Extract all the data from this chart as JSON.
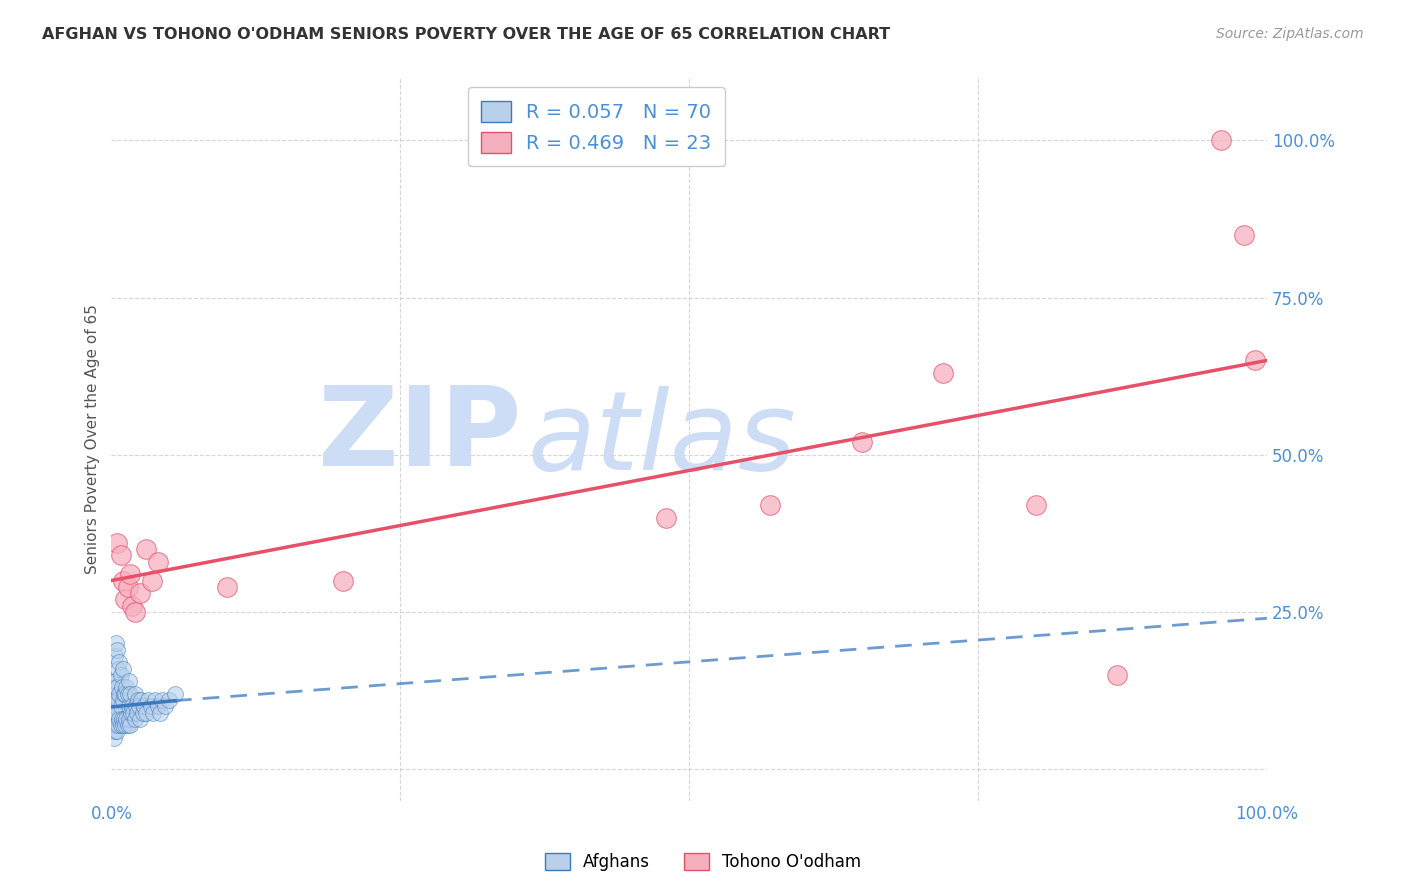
{
  "title": "AFGHAN VS TOHONO O'ODHAM SENIORS POVERTY OVER THE AGE OF 65 CORRELATION CHART",
  "source": "Source: ZipAtlas.com",
  "ylabel": "Seniors Poverty Over the Age of 65",
  "xlim": [
    0,
    1
  ],
  "ylim": [
    -0.05,
    1.1
  ],
  "r_afghan": 0.057,
  "n_afghan": 70,
  "r_tohono": 0.469,
  "n_tohono": 23,
  "afghan_color": "#b8d0ea",
  "tohono_color": "#f5b0c0",
  "afghan_line_color": "#3a7abf",
  "tohono_line_color": "#e8506a",
  "legend_label_afghan": "Afghans",
  "legend_label_tohono": "Tohono O'odham",
  "watermark_zip": "ZIP",
  "watermark_atlas": "atlas",
  "watermark_color": "#cdddf5",
  "background_color": "#ffffff",
  "grid_color": "#cccccc",
  "title_color": "#333333",
  "axis_label_color": "#555555",
  "tick_color_blue": "#4a90d9",
  "afghan_x": [
    0.0,
    0.001,
    0.001,
    0.002,
    0.002,
    0.002,
    0.002,
    0.003,
    0.003,
    0.003,
    0.003,
    0.004,
    0.004,
    0.004,
    0.004,
    0.005,
    0.005,
    0.005,
    0.005,
    0.006,
    0.006,
    0.006,
    0.007,
    0.007,
    0.007,
    0.008,
    0.008,
    0.008,
    0.009,
    0.009,
    0.01,
    0.01,
    0.01,
    0.011,
    0.011,
    0.012,
    0.012,
    0.013,
    0.013,
    0.014,
    0.014,
    0.015,
    0.015,
    0.015,
    0.016,
    0.016,
    0.017,
    0.018,
    0.019,
    0.02,
    0.02,
    0.021,
    0.022,
    0.023,
    0.024,
    0.025,
    0.026,
    0.027,
    0.028,
    0.03,
    0.032,
    0.034,
    0.036,
    0.038,
    0.04,
    0.042,
    0.044,
    0.046,
    0.05,
    0.055
  ],
  "afghan_y": [
    0.09,
    0.08,
    0.1,
    0.05,
    0.07,
    0.11,
    0.14,
    0.06,
    0.09,
    0.13,
    0.18,
    0.07,
    0.1,
    0.14,
    0.2,
    0.06,
    0.09,
    0.13,
    0.19,
    0.07,
    0.11,
    0.16,
    0.08,
    0.12,
    0.17,
    0.07,
    0.1,
    0.15,
    0.08,
    0.13,
    0.07,
    0.11,
    0.16,
    0.08,
    0.12,
    0.07,
    0.12,
    0.08,
    0.13,
    0.07,
    0.12,
    0.08,
    0.1,
    0.14,
    0.07,
    0.12,
    0.09,
    0.1,
    0.09,
    0.08,
    0.12,
    0.1,
    0.09,
    0.11,
    0.1,
    0.08,
    0.11,
    0.09,
    0.1,
    0.09,
    0.11,
    0.1,
    0.09,
    0.11,
    0.1,
    0.09,
    0.11,
    0.1,
    0.11,
    0.12
  ],
  "tohono_x": [
    0.005,
    0.008,
    0.01,
    0.012,
    0.014,
    0.016,
    0.018,
    0.02,
    0.025,
    0.03,
    0.035,
    0.04,
    0.1,
    0.2,
    0.48,
    0.57,
    0.65,
    0.72,
    0.8,
    0.87,
    0.96,
    0.98,
    0.99
  ],
  "tohono_y": [
    0.36,
    0.34,
    0.3,
    0.27,
    0.29,
    0.31,
    0.26,
    0.25,
    0.28,
    0.35,
    0.3,
    0.33,
    0.29,
    0.3,
    0.4,
    0.42,
    0.52,
    0.63,
    0.42,
    0.15,
    1.0,
    0.85,
    0.65
  ],
  "tohono_line_start_x": 0.0,
  "tohono_line_start_y": 0.3,
  "tohono_line_end_x": 1.0,
  "tohono_line_end_y": 0.65,
  "afghan_line_solid_x0": 0.0,
  "afghan_line_solid_y0": 0.099,
  "afghan_line_solid_x1": 0.055,
  "afghan_line_solid_y1": 0.109,
  "afghan_line_dash_x1": 1.0,
  "afghan_line_dash_y1": 0.24
}
